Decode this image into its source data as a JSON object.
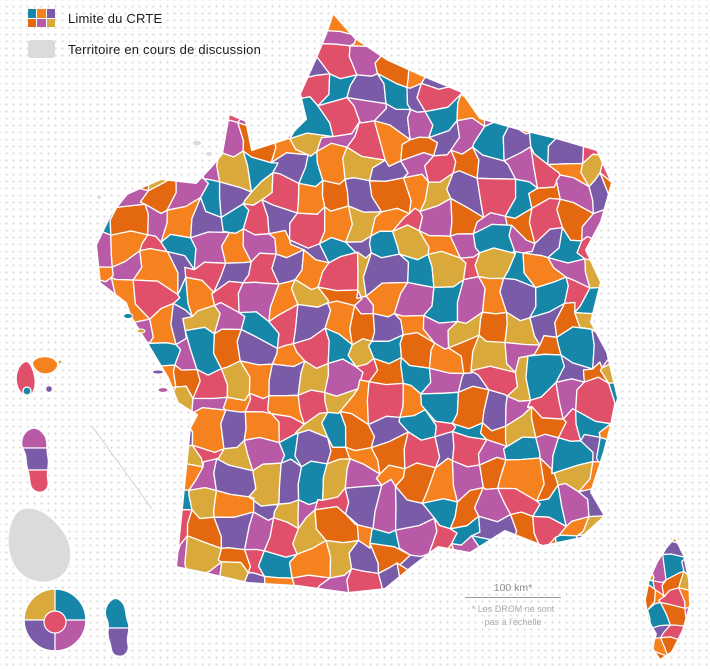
{
  "legend": {
    "items": [
      {
        "label": "Limite du CRTE"
      },
      {
        "label": "Territoire en cours de discussion"
      }
    ]
  },
  "scale": {
    "label": "100 km*",
    "footnote_line1": "* Les DROM ne sont",
    "footnote_line2": "pas à l'échelle"
  },
  "map": {
    "palette": [
      "#1687A8",
      "#F5821F",
      "#D9A93C",
      "#7A5BA8",
      "#B85AA6",
      "#E0506A",
      "#E4680F"
    ],
    "discussion_color": "#DBDBDB",
    "border_color": "#FFFFFF",
    "dot_color": "#DCDCDC"
  }
}
